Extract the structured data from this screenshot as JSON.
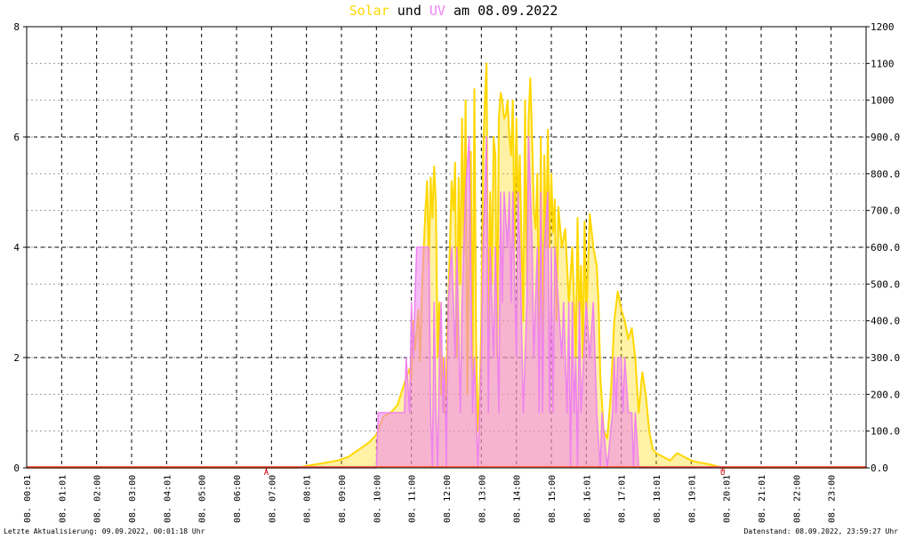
{
  "title": {
    "solar_word": "Solar",
    "und_word": " und ",
    "uv_word": "UV",
    "rest": " am 08.09.2022"
  },
  "footer": {
    "left": "Letzte Aktualisierung: 09.09.2022, 00:01:18 Uhr",
    "right": "Datenstand: 08.09.2022, 23:59:27 Uhr"
  },
  "colors": {
    "solar": "#ffd700",
    "uv": "#ee82ee",
    "overlap": "#f4a460",
    "baseline": "#ff6347",
    "grid": "#000000",
    "marker": "#cc0000"
  },
  "chart_data": {
    "type": "line",
    "title": "Solar und UV am 08.09.2022",
    "x_range_hours": [
      0,
      24
    ],
    "x_tick_labels": [
      "08. 00:01",
      "08. 01:01",
      "08. 02:00",
      "08. 03:00",
      "08. 04:01",
      "08. 05:00",
      "08. 06:00",
      "08. 07:00",
      "08. 08:01",
      "08. 09:00",
      "08. 10:00",
      "08. 11:00",
      "08. 12:00",
      "08. 13:00",
      "08. 14:00",
      "08. 15:00",
      "08. 16:01",
      "08. 17:01",
      "08. 18:01",
      "08. 19:01",
      "08. 20:01",
      "08. 21:01",
      "08. 22:00",
      "08. 23:00"
    ],
    "y_left": {
      "range": [
        0,
        8
      ],
      "ticks": [
        "0",
        "2",
        "4",
        "6",
        "8"
      ]
    },
    "y_right": {
      "range": [
        0,
        1200
      ],
      "ticks": [
        "0.0",
        "100.0",
        "200.0",
        "300.0",
        "400.0",
        "500.0",
        "600.0",
        "700.0",
        "800.0",
        "900.0",
        "1000",
        "1100",
        "1200"
      ]
    },
    "markers": [
      {
        "label": "A",
        "hour": 6.85
      },
      {
        "label": "U",
        "hour": 19.9
      }
    ],
    "series": [
      {
        "name": "Solar",
        "axis": "right",
        "points": [
          [
            0,
            0
          ],
          [
            7.7,
            0
          ],
          [
            8.0,
            5
          ],
          [
            8.3,
            10
          ],
          [
            8.6,
            15
          ],
          [
            8.9,
            20
          ],
          [
            9.2,
            30
          ],
          [
            9.5,
            50
          ],
          [
            9.8,
            70
          ],
          [
            10.0,
            90
          ],
          [
            10.2,
            140
          ],
          [
            10.4,
            150
          ],
          [
            10.6,
            170
          ],
          [
            10.8,
            230
          ],
          [
            10.95,
            270
          ],
          [
            11.0,
            240
          ],
          [
            11.05,
            400
          ],
          [
            11.1,
            320
          ],
          [
            11.2,
            430
          ],
          [
            11.25,
            290
          ],
          [
            11.3,
            480
          ],
          [
            11.35,
            590
          ],
          [
            11.4,
            700
          ],
          [
            11.45,
            780
          ],
          [
            11.5,
            550
          ],
          [
            11.55,
            790
          ],
          [
            11.6,
            680
          ],
          [
            11.65,
            820
          ],
          [
            11.7,
            720
          ],
          [
            11.75,
            300
          ],
          [
            11.8,
            450
          ],
          [
            11.85,
            200
          ],
          [
            11.9,
            300
          ],
          [
            11.95,
            150
          ],
          [
            12.0,
            250
          ],
          [
            12.05,
            450
          ],
          [
            12.1,
            600
          ],
          [
            12.15,
            780
          ],
          [
            12.2,
            700
          ],
          [
            12.25,
            830
          ],
          [
            12.3,
            300
          ],
          [
            12.35,
            790
          ],
          [
            12.4,
            500
          ],
          [
            12.45,
            950
          ],
          [
            12.5,
            580
          ],
          [
            12.55,
            1000
          ],
          [
            12.6,
            200
          ],
          [
            12.65,
            600
          ],
          [
            12.7,
            860
          ],
          [
            12.75,
            250
          ],
          [
            12.8,
            1030
          ],
          [
            12.85,
            350
          ],
          [
            12.9,
            100
          ],
          [
            12.95,
            200
          ],
          [
            13.0,
            400
          ],
          [
            13.05,
            850
          ],
          [
            13.1,
            1000
          ],
          [
            13.15,
            1100
          ],
          [
            13.2,
            300
          ],
          [
            13.25,
            750
          ],
          [
            13.3,
            500
          ],
          [
            13.35,
            900
          ],
          [
            13.4,
            850
          ],
          [
            13.45,
            300
          ],
          [
            13.5,
            950
          ],
          [
            13.55,
            1020
          ],
          [
            13.6,
            1000
          ],
          [
            13.65,
            950
          ],
          [
            13.7,
            960
          ],
          [
            13.75,
            1000
          ],
          [
            13.8,
            900
          ],
          [
            13.85,
            850
          ],
          [
            13.9,
            1000
          ],
          [
            13.95,
            600
          ],
          [
            14.0,
            950
          ],
          [
            14.05,
            700
          ],
          [
            14.1,
            850
          ],
          [
            14.15,
            600
          ],
          [
            14.2,
            400
          ],
          [
            14.25,
            1000
          ],
          [
            14.3,
            500
          ],
          [
            14.35,
            950
          ],
          [
            14.4,
            1060
          ],
          [
            14.45,
            900
          ],
          [
            14.5,
            700
          ],
          [
            14.55,
            650
          ],
          [
            14.6,
            800
          ],
          [
            14.65,
            300
          ],
          [
            14.7,
            900
          ],
          [
            14.75,
            250
          ],
          [
            14.8,
            850
          ],
          [
            14.85,
            600
          ],
          [
            14.9,
            920
          ],
          [
            14.95,
            600
          ],
          [
            15.0,
            800
          ],
          [
            15.05,
            640
          ],
          [
            15.1,
            730
          ],
          [
            15.15,
            400
          ],
          [
            15.2,
            710
          ],
          [
            15.3,
            600
          ],
          [
            15.4,
            650
          ],
          [
            15.5,
            450
          ],
          [
            15.6,
            600
          ],
          [
            15.7,
            300
          ],
          [
            15.75,
            680
          ],
          [
            15.8,
            400
          ],
          [
            15.85,
            550
          ],
          [
            15.9,
            300
          ],
          [
            15.95,
            670
          ],
          [
            16.0,
            400
          ],
          [
            16.05,
            550
          ],
          [
            16.1,
            690
          ],
          [
            16.2,
            600
          ],
          [
            16.3,
            550
          ],
          [
            16.35,
            450
          ],
          [
            16.4,
            250
          ],
          [
            16.5,
            100
          ],
          [
            16.6,
            80
          ],
          [
            16.7,
            200
          ],
          [
            16.8,
            400
          ],
          [
            16.9,
            480
          ],
          [
            17.0,
            430
          ],
          [
            17.1,
            400
          ],
          [
            17.2,
            350
          ],
          [
            17.3,
            380
          ],
          [
            17.4,
            300
          ],
          [
            17.5,
            150
          ],
          [
            17.6,
            260
          ],
          [
            17.7,
            200
          ],
          [
            17.8,
            100
          ],
          [
            17.9,
            50
          ],
          [
            18.0,
            40
          ],
          [
            18.2,
            30
          ],
          [
            18.4,
            20
          ],
          [
            18.6,
            40
          ],
          [
            18.8,
            30
          ],
          [
            19.0,
            20
          ],
          [
            19.2,
            15
          ],
          [
            19.5,
            10
          ],
          [
            19.8,
            3
          ],
          [
            19.9,
            0
          ],
          [
            24,
            0
          ]
        ]
      },
      {
        "name": "UV",
        "axis": "left",
        "points": [
          [
            0,
            0
          ],
          [
            10.0,
            0
          ],
          [
            10.05,
            1
          ],
          [
            10.8,
            1
          ],
          [
            10.85,
            2
          ],
          [
            10.95,
            1
          ],
          [
            11.0,
            3
          ],
          [
            11.05,
            2
          ],
          [
            11.1,
            3
          ],
          [
            11.15,
            4
          ],
          [
            11.5,
            4
          ],
          [
            11.55,
            1
          ],
          [
            11.6,
            0
          ],
          [
            11.65,
            3
          ],
          [
            11.7,
            1
          ],
          [
            11.75,
            0
          ],
          [
            11.8,
            2
          ],
          [
            11.85,
            3
          ],
          [
            11.9,
            1
          ],
          [
            11.95,
            2
          ],
          [
            12.0,
            0
          ],
          [
            12.05,
            3
          ],
          [
            12.15,
            4
          ],
          [
            12.25,
            2
          ],
          [
            12.3,
            4
          ],
          [
            12.4,
            1
          ],
          [
            12.45,
            3
          ],
          [
            12.55,
            5
          ],
          [
            12.65,
            6
          ],
          [
            12.75,
            1
          ],
          [
            12.8,
            2
          ],
          [
            12.9,
            0
          ],
          [
            13.0,
            2
          ],
          [
            13.05,
            4
          ],
          [
            13.1,
            5
          ],
          [
            13.15,
            6
          ],
          [
            13.2,
            1
          ],
          [
            13.25,
            4
          ],
          [
            13.35,
            2
          ],
          [
            13.4,
            4
          ],
          [
            13.5,
            1
          ],
          [
            13.55,
            5
          ],
          [
            13.6,
            3
          ],
          [
            13.65,
            5
          ],
          [
            13.75,
            4
          ],
          [
            13.8,
            5
          ],
          [
            13.85,
            3
          ],
          [
            13.9,
            5
          ],
          [
            14.0,
            2
          ],
          [
            14.05,
            5
          ],
          [
            14.1,
            4
          ],
          [
            14.2,
            1
          ],
          [
            14.3,
            3
          ],
          [
            14.35,
            6
          ],
          [
            14.45,
            4
          ],
          [
            14.5,
            2
          ],
          [
            14.6,
            4
          ],
          [
            14.65,
            1
          ],
          [
            14.7,
            5
          ],
          [
            14.75,
            1
          ],
          [
            14.8,
            4
          ],
          [
            14.9,
            5
          ],
          [
            14.95,
            1
          ],
          [
            15.0,
            4
          ],
          [
            15.05,
            1
          ],
          [
            15.1,
            4
          ],
          [
            15.2,
            3
          ],
          [
            15.3,
            2
          ],
          [
            15.35,
            3
          ],
          [
            15.45,
            1
          ],
          [
            15.5,
            3
          ],
          [
            15.55,
            0
          ],
          [
            15.6,
            3
          ],
          [
            15.65,
            1
          ],
          [
            15.7,
            2
          ],
          [
            15.75,
            0
          ],
          [
            15.8,
            3
          ],
          [
            15.85,
            1
          ],
          [
            16.0,
            3
          ],
          [
            16.1,
            2
          ],
          [
            16.2,
            3
          ],
          [
            16.3,
            1
          ],
          [
            16.4,
            0
          ],
          [
            16.45,
            1
          ],
          [
            16.6,
            0
          ],
          [
            16.75,
            1
          ],
          [
            16.8,
            2
          ],
          [
            16.85,
            1
          ],
          [
            16.9,
            2
          ],
          [
            17.0,
            2
          ],
          [
            17.05,
            1
          ],
          [
            17.1,
            2
          ],
          [
            17.2,
            1
          ],
          [
            17.3,
            1
          ],
          [
            17.35,
            0
          ],
          [
            17.4,
            1
          ],
          [
            17.5,
            0
          ],
          [
            24,
            0
          ]
        ]
      }
    ]
  }
}
